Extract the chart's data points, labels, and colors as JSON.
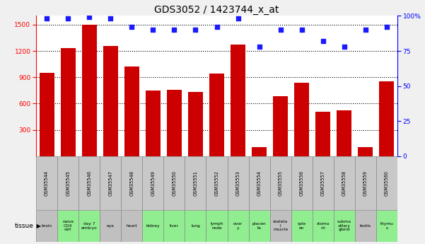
{
  "title": "GDS3052 / 1423744_x_at",
  "samples": [
    "GSM35544",
    "GSM35545",
    "GSM35546",
    "GSM35547",
    "GSM35548",
    "GSM35549",
    "GSM35550",
    "GSM35551",
    "GSM35552",
    "GSM35553",
    "GSM35554",
    "GSM35555",
    "GSM35556",
    "GSM35557",
    "GSM35558",
    "GSM35559",
    "GSM35560"
  ],
  "counts": [
    950,
    1230,
    1500,
    1260,
    1020,
    750,
    760,
    730,
    940,
    1270,
    105,
    680,
    840,
    510,
    520,
    105,
    850
  ],
  "percentiles": [
    98,
    98,
    99,
    98,
    92,
    90,
    90,
    90,
    92,
    98,
    78,
    90,
    90,
    82,
    78,
    90,
    92
  ],
  "tissues": [
    "brain",
    "naive\nCD4\ncell",
    "day 7\nembryо",
    "eye",
    "heart",
    "kidney",
    "liver",
    "lung",
    "lymph\nnode",
    "ovar\ny",
    "placen\nta",
    "skeleta\nl\nmuscle",
    "sple\nen",
    "stoma\nch",
    "subma\nxillary\ngland",
    "testis",
    "thymu\ns"
  ],
  "tissue_colors": [
    "#c0c0c0",
    "#90EE90",
    "#90EE90",
    "#c0c0c0",
    "#c0c0c0",
    "#90EE90",
    "#90EE90",
    "#90EE90",
    "#90EE90",
    "#90EE90",
    "#90EE90",
    "#c0c0c0",
    "#90EE90",
    "#90EE90",
    "#90EE90",
    "#c0c0c0",
    "#90EE90"
  ],
  "sample_colors": [
    "#c0c0c0",
    "#c0c0c0",
    "#c0c0c0",
    "#c0c0c0",
    "#c0c0c0",
    "#c0c0c0",
    "#c0c0c0",
    "#c0c0c0",
    "#c0c0c0",
    "#c0c0c0",
    "#c0c0c0",
    "#c0c0c0",
    "#c0c0c0",
    "#c0c0c0",
    "#c0c0c0",
    "#c0c0c0",
    "#c0c0c0"
  ],
  "bar_color": "#cc0000",
  "dot_color": "#1a1aff",
  "ylim_left": [
    0,
    1600
  ],
  "yticks_left": [
    300,
    600,
    900,
    1200,
    1500
  ],
  "ylim_right": [
    0,
    100
  ],
  "yticks_right": [
    0,
    25,
    50,
    75,
    100
  ],
  "bg_color": "#f0f0f0",
  "plot_bg": "#ffffff",
  "grid_color": "#000000",
  "title_fontsize": 10,
  "tick_fontsize": 6.5,
  "label_fontsize": 5.0,
  "legend_fontsize": 7.5
}
